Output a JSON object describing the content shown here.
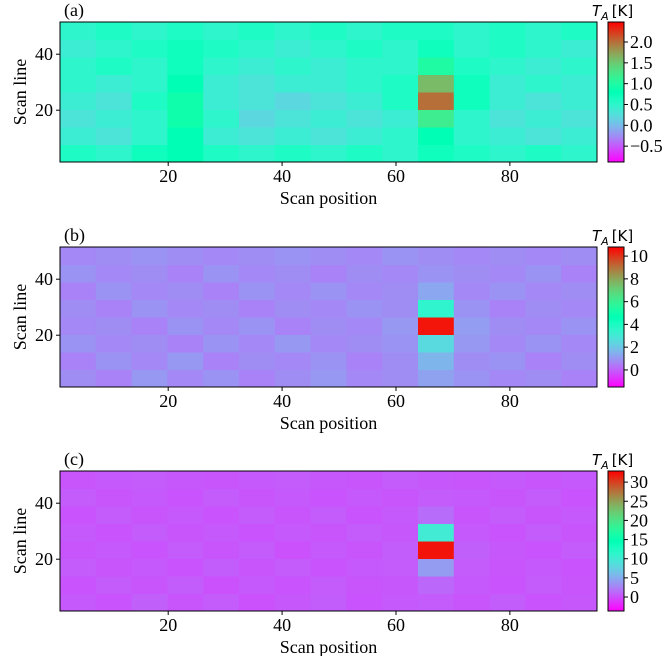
{
  "chart_data": [
    {
      "type": "heatmap",
      "panel_label": "(a)",
      "xlabel": "Scan position",
      "ylabel": "Scan line",
      "colorbar_symbol": "T",
      "colorbar_subscript": "A",
      "colorbar_unit": "[K]",
      "colormap": "rainbow",
      "xlim": [
        1,
        95.3
      ],
      "ylim": [
        1.5,
        51.5
      ],
      "xticks": [
        20,
        40,
        60,
        80
      ],
      "yticks": [
        20,
        40
      ],
      "clim": [
        -0.88,
        2.48
      ],
      "cticks": [
        {
          "value": -0.5,
          "label": "−0.5"
        },
        {
          "value": 0,
          "label": "0.0"
        },
        {
          "value": 0.5,
          "label": "0.5"
        },
        {
          "value": 1,
          "label": "1.0"
        },
        {
          "value": 1.5,
          "label": "1.5"
        },
        {
          "value": 2,
          "label": "2.0"
        }
      ],
      "z": [
        [
          0.6,
          0.5,
          0.7,
          0.8,
          0.6,
          0.5,
          0.6,
          0.5,
          0.6,
          0.5,
          0.7,
          0.6,
          0.5,
          0.6,
          0.5
        ],
        [
          0.4,
          0.3,
          0.5,
          0.8,
          0.4,
          0.3,
          0.4,
          0.3,
          0.4,
          0.5,
          0.8,
          0.5,
          0.4,
          0.3,
          0.4
        ],
        [
          0.3,
          0.4,
          0.5,
          0.9,
          0.5,
          0.2,
          0.3,
          0.4,
          0.3,
          0.4,
          1.2,
          0.5,
          0.3,
          0.4,
          0.3
        ],
        [
          0.4,
          0.3,
          0.6,
          0.9,
          0.4,
          0.3,
          0.2,
          0.3,
          0.4,
          0.6,
          2.0,
          0.7,
          0.4,
          0.3,
          0.4
        ],
        [
          0.5,
          0.4,
          0.5,
          0.8,
          0.4,
          0.3,
          0.4,
          0.4,
          0.5,
          0.6,
          1.6,
          0.7,
          0.4,
          0.5,
          0.4
        ],
        [
          0.5,
          0.6,
          0.5,
          0.7,
          0.5,
          0.4,
          0.5,
          0.4,
          0.5,
          0.5,
          1.0,
          0.6,
          0.5,
          0.4,
          0.5
        ],
        [
          0.4,
          0.5,
          0.6,
          0.7,
          0.6,
          0.5,
          0.4,
          0.5,
          0.6,
          0.5,
          0.7,
          0.5,
          0.6,
          0.5,
          0.4
        ],
        [
          0.5,
          0.6,
          0.5,
          0.6,
          0.5,
          0.6,
          0.5,
          0.6,
          0.5,
          0.6,
          0.6,
          0.5,
          0.6,
          0.5,
          0.6
        ]
      ]
    },
    {
      "type": "heatmap",
      "panel_label": "(b)",
      "xlabel": "Scan position",
      "ylabel": "Scan line",
      "colorbar_symbol": "T",
      "colorbar_subscript": "A",
      "colorbar_unit": "[K]",
      "colormap": "rainbow",
      "xlim": [
        1,
        95.3
      ],
      "ylim": [
        1.5,
        51.5
      ],
      "xticks": [
        20,
        40,
        60,
        80
      ],
      "yticks": [
        20,
        40
      ],
      "clim": [
        -1.5,
        10.8
      ],
      "cticks": [
        0,
        2,
        4,
        6,
        8,
        10
      ],
      "z": [
        [
          0.8,
          0.6,
          1.0,
          0.7,
          0.9,
          0.6,
          0.8,
          1.0,
          0.7,
          0.8,
          1.2,
          0.9,
          0.7,
          0.8,
          0.6
        ],
        [
          0.6,
          0.9,
          0.7,
          1.0,
          0.6,
          0.8,
          0.7,
          0.9,
          0.6,
          0.8,
          1.6,
          0.8,
          0.9,
          0.6,
          0.8
        ],
        [
          0.9,
          0.7,
          0.8,
          0.6,
          0.9,
          0.7,
          1.0,
          0.7,
          0.8,
          0.9,
          2.5,
          1.0,
          0.7,
          0.9,
          0.7
        ],
        [
          0.7,
          0.8,
          0.6,
          0.9,
          0.7,
          0.9,
          0.6,
          0.8,
          0.7,
          1.0,
          10.5,
          1.1,
          0.8,
          0.7,
          0.9
        ],
        [
          0.8,
          0.6,
          0.9,
          0.7,
          0.8,
          0.6,
          0.8,
          0.7,
          0.9,
          0.8,
          3.5,
          0.9,
          0.6,
          0.8,
          0.7
        ],
        [
          0.6,
          0.9,
          0.7,
          0.8,
          0.6,
          0.9,
          0.7,
          0.9,
          0.7,
          0.8,
          1.3,
          0.7,
          0.9,
          0.7,
          0.8
        ],
        [
          0.9,
          0.7,
          0.8,
          0.6,
          0.9,
          0.7,
          0.8,
          0.6,
          0.8,
          0.7,
          0.9,
          0.8,
          0.7,
          0.9,
          0.6
        ],
        [
          0.7,
          0.8,
          0.9,
          0.8,
          0.7,
          0.8,
          0.9,
          0.8,
          0.7,
          0.9,
          0.8,
          0.7,
          0.8,
          0.7,
          0.8
        ]
      ]
    },
    {
      "type": "heatmap",
      "panel_label": "(c)",
      "xlabel": "Scan position",
      "ylabel": "Scan line",
      "colorbar_symbol": "T",
      "colorbar_subscript": "A",
      "colorbar_unit": "[K]",
      "colormap": "rainbow",
      "xlim": [
        1,
        95.3
      ],
      "ylim": [
        1.5,
        51.5
      ],
      "xticks": [
        20,
        40,
        60,
        80
      ],
      "yticks": [
        20,
        40
      ],
      "clim": [
        -3.65,
        32.9
      ],
      "cticks": [
        0,
        5,
        10,
        15,
        20,
        25,
        30
      ],
      "z": [
        [
          0.5,
          0.2,
          0.8,
          0.3,
          0.6,
          0.1,
          0.4,
          0.7,
          0.2,
          0.5,
          0.6,
          0.3,
          0.7,
          0.2,
          0.4
        ],
        [
          0.2,
          0.6,
          0.3,
          0.7,
          0.1,
          0.5,
          0.2,
          0.6,
          0.3,
          0.4,
          1.2,
          0.5,
          0.2,
          0.6,
          0.3
        ],
        [
          0.6,
          0.3,
          0.5,
          0.2,
          0.7,
          0.3,
          0.6,
          0.2,
          0.5,
          0.6,
          4.0,
          0.6,
          0.3,
          0.5,
          0.2
        ],
        [
          0.3,
          0.5,
          0.2,
          0.6,
          0.3,
          0.6,
          0.1,
          0.5,
          0.3,
          0.7,
          32.0,
          0.8,
          0.4,
          0.2,
          0.6
        ],
        [
          0.5,
          0.2,
          0.6,
          0.3,
          0.5,
          0.2,
          0.5,
          0.3,
          0.6,
          0.4,
          10.0,
          0.5,
          0.2,
          0.6,
          0.3
        ],
        [
          0.2,
          0.6,
          0.3,
          0.5,
          0.2,
          0.6,
          0.3,
          0.6,
          0.2,
          0.5,
          1.5,
          0.3,
          0.6,
          0.3,
          0.5
        ],
        [
          0.6,
          0.3,
          0.5,
          0.2,
          0.6,
          0.3,
          0.5,
          0.2,
          0.5,
          0.3,
          0.6,
          0.5,
          0.3,
          0.6,
          0.2
        ],
        [
          0.3,
          0.5,
          0.6,
          0.4,
          0.3,
          0.5,
          0.6,
          0.4,
          0.3,
          0.6,
          0.4,
          0.3,
          0.5,
          0.3,
          0.5
        ]
      ]
    }
  ]
}
